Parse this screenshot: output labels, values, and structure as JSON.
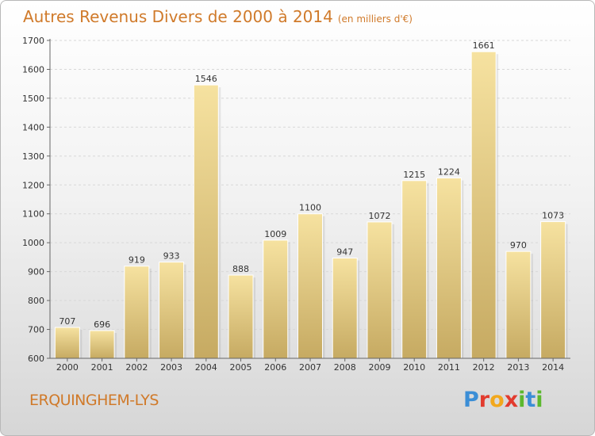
{
  "header": {
    "title": "Autres Revenus Divers de 2000 à 2014",
    "subtitle": "(en milliers d'€)"
  },
  "footer": {
    "commune": "ERQUINGHEM-LYS",
    "logo_letters": [
      "P",
      "r",
      "o",
      "x",
      "i",
      "t",
      "i"
    ],
    "logo_colors": [
      "#3b8ed6",
      "#e23b2e",
      "#f2a81d",
      "#e23b2e",
      "#5cb82e",
      "#3b8ed6",
      "#5cb82e"
    ]
  },
  "chart_data": {
    "type": "bar",
    "title": "Autres Revenus Divers de 2000 à 2014",
    "subtitle": "(en milliers d'€)",
    "categories": [
      "2000",
      "2001",
      "2002",
      "2003",
      "2004",
      "2005",
      "2006",
      "2007",
      "2008",
      "2009",
      "2010",
      "2011",
      "2012",
      "2013",
      "2014"
    ],
    "values": [
      707,
      696,
      919,
      933,
      1546,
      888,
      1009,
      1100,
      947,
      1072,
      1215,
      1224,
      1661,
      970,
      1073
    ],
    "ylim": [
      600,
      1700
    ],
    "yticks": [
      600,
      700,
      800,
      900,
      1000,
      1100,
      1200,
      1300,
      1400,
      1500,
      1600,
      1700
    ],
    "grid": true,
    "bar_color": "#e9cf87"
  }
}
